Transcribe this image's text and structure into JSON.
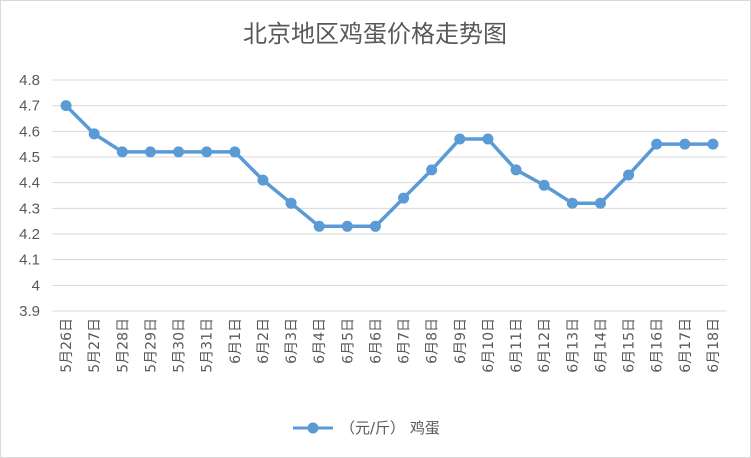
{
  "chart_data": {
    "type": "line",
    "title": "北京地区鸡蛋价格走势图",
    "categories": [
      "5月26日",
      "5月27日",
      "5月28日",
      "5月29日",
      "5月30日",
      "5月31日",
      "6月1日",
      "6月2日",
      "6月3日",
      "6月4日",
      "6月5日",
      "6月6日",
      "6月7日",
      "6月8日",
      "6月9日",
      "6月10日",
      "6月11日",
      "6月12日",
      "6月13日",
      "6月14日",
      "6月15日",
      "6月16日",
      "6月17日",
      "6月18日"
    ],
    "series": [
      {
        "name": "（元/斤） 鸡蛋",
        "values": [
          4.7,
          4.59,
          4.52,
          4.52,
          4.52,
          4.52,
          4.52,
          4.41,
          4.32,
          4.23,
          4.23,
          4.23,
          4.34,
          4.45,
          4.57,
          4.57,
          4.45,
          4.39,
          4.32,
          4.32,
          4.43,
          4.55,
          4.55,
          4.55
        ]
      }
    ],
    "ylim": [
      3.9,
      4.8
    ],
    "yticks": [
      "4.8",
      "4.7",
      "4.6",
      "4.5",
      "4.4",
      "4.3",
      "4.2",
      "4.1",
      "4",
      "3.9"
    ],
    "grid": true,
    "legend": "bottom",
    "colors": {
      "line": "#5b9bd5",
      "grid": "#d9d9d9",
      "text": "#595959"
    }
  }
}
